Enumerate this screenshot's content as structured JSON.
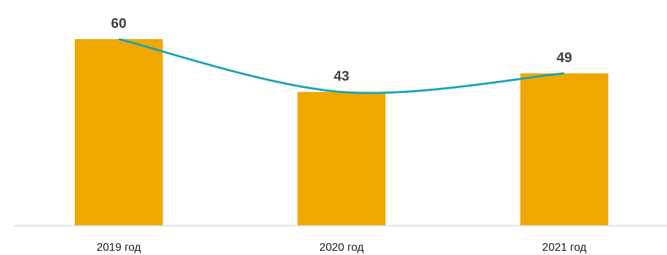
{
  "chart_data": {
    "type": "bar",
    "categories": [
      "2019 год",
      "2020 год",
      "2021 год"
    ],
    "values": [
      60,
      43,
      49
    ],
    "title": "",
    "xlabel": "",
    "ylabel": "",
    "ylim": [
      0,
      70
    ],
    "grid": false,
    "legend": "none",
    "trend_line": true,
    "colors": {
      "bar": "#f0a800",
      "trend": "#1ea3b3",
      "axis": "#d9d9d9"
    }
  }
}
